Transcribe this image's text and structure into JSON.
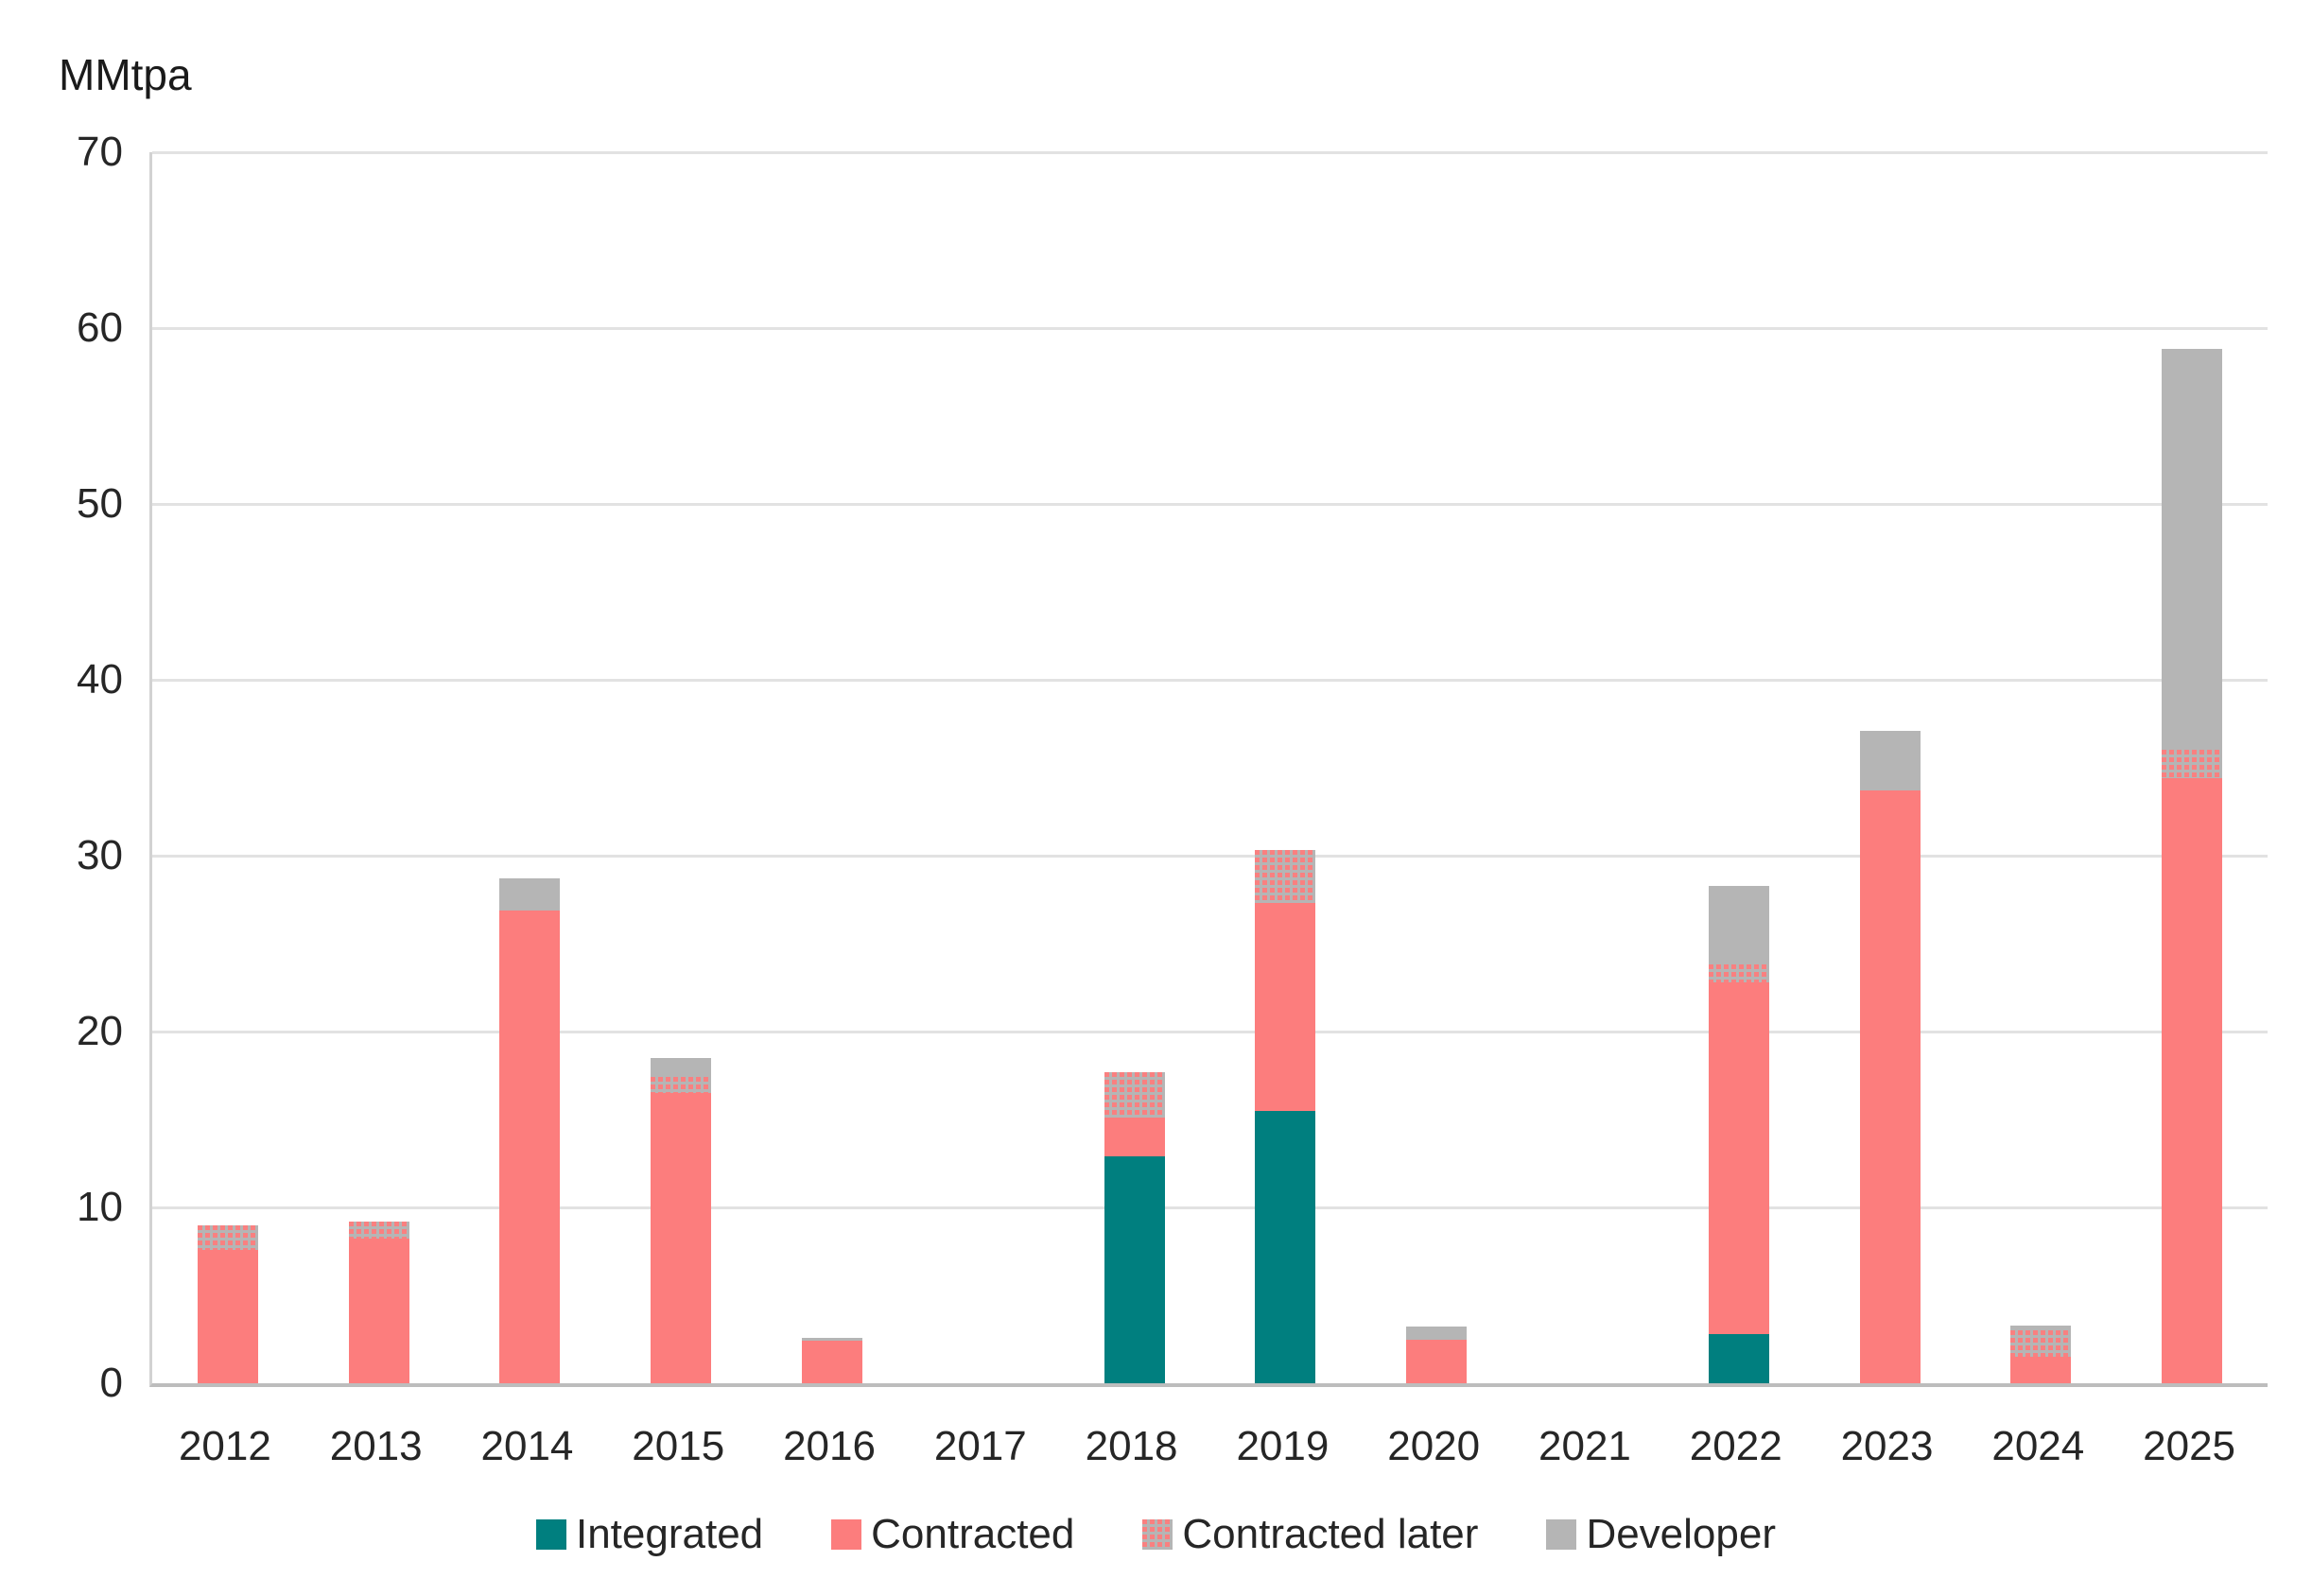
{
  "chart_data": {
    "type": "bar",
    "stacked": true,
    "title": "MMtpa",
    "categories": [
      "2012",
      "2013",
      "2014",
      "2015",
      "2016",
      "2017",
      "2018",
      "2019",
      "2020",
      "2021",
      "2022",
      "2023",
      "2024",
      "2025"
    ],
    "series": [
      {
        "name": "Integrated",
        "color": "#007f7f",
        "style": "solid",
        "values": [
          0,
          0,
          0,
          0,
          0,
          0,
          12.9,
          15.5,
          0,
          0,
          2.8,
          0,
          0,
          0
        ]
      },
      {
        "name": "Contracted",
        "color": "#fc7d7d",
        "style": "solid",
        "values": [
          7.6,
          8.2,
          26.9,
          16.5,
          2.4,
          0,
          2.2,
          11.8,
          2.5,
          0,
          20.0,
          33.7,
          1.5,
          34.4
        ]
      },
      {
        "name": "Contracted later",
        "color": "#b5b5b5",
        "style": "pink-dots-on-gray-pattern",
        "values": [
          1.4,
          1.0,
          0,
          0.9,
          0,
          0,
          2.6,
          3.0,
          0,
          0,
          1.0,
          0,
          1.5,
          1.6
        ]
      },
      {
        "name": "Developer",
        "color": "#b5b5b5",
        "style": "solid",
        "values": [
          0,
          0,
          1.8,
          1.1,
          0.2,
          0,
          0,
          0,
          0.7,
          0,
          4.5,
          3.4,
          0.3,
          22.8
        ]
      }
    ],
    "totals": [
      9.0,
      9.2,
      28.7,
      18.5,
      2.6,
      0,
      17.7,
      30.3,
      3.2,
      0,
      28.3,
      37.1,
      3.3,
      58.8
    ],
    "ylabel": "MMtpa",
    "xlabel": "",
    "ylim": [
      0,
      70
    ],
    "yticks": [
      0,
      10,
      20,
      30,
      40,
      50,
      60,
      70
    ],
    "grid": true,
    "legend_position": "bottom",
    "colors": {
      "integrated": "#007f7f",
      "contracted": "#fc7d7d",
      "contracted_later_bg": "#b5b5b5",
      "contracted_later_dot": "#f98080",
      "developer": "#b5b5b5",
      "gridline": "#e2e2e2",
      "axis_line": "#bdbdbd",
      "text": "#262626"
    }
  }
}
